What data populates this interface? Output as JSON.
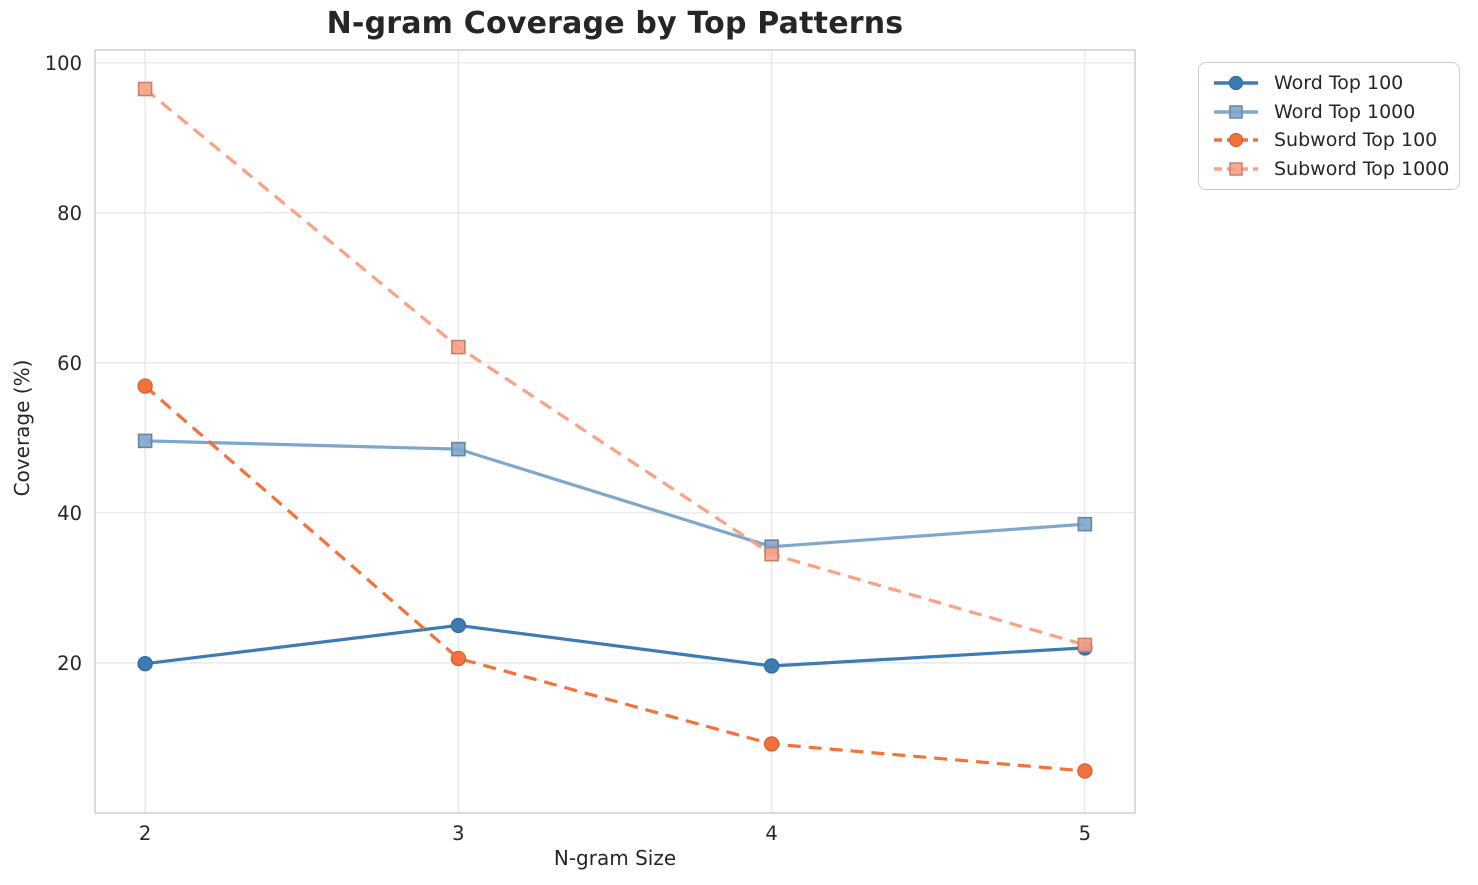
{
  "chart_data": {
    "type": "line",
    "title": "N-gram Coverage by Top Patterns",
    "xlabel": "N-gram Size",
    "ylabel": "Coverage (%)",
    "x": [
      2,
      3,
      4,
      5
    ],
    "xticks": [
      "2",
      "3",
      "4",
      "5"
    ],
    "yticks": [
      20,
      40,
      60,
      80,
      100
    ],
    "xlim": [
      1.84,
      5.16
    ],
    "ylim": [
      0,
      101.7
    ],
    "grid": true,
    "legend_position": "outside upper right",
    "series": [
      {
        "name": "Word Top 100",
        "values": [
          19.9,
          25.0,
          19.6,
          22.0
        ],
        "color": "#3d7bb4",
        "line_style": "solid",
        "marker": "circle"
      },
      {
        "name": "Word Top 1000",
        "values": [
          49.6,
          48.5,
          35.5,
          38.5
        ],
        "color": "#7fa7cc",
        "line_style": "solid",
        "marker": "square"
      },
      {
        "name": "Subword Top 100",
        "values": [
          56.9,
          20.6,
          9.2,
          5.6
        ],
        "color": "#f4713c",
        "line_style": "dashed",
        "marker": "circle"
      },
      {
        "name": "Subword Top 1000",
        "values": [
          96.5,
          62.1,
          34.5,
          22.4
        ],
        "color": "#f9a185",
        "line_style": "dashed",
        "marker": "square"
      }
    ],
    "style": {
      "grid_color": "#e7e7e7",
      "spine_color": "#cfcfcf",
      "text_color": "#262626",
      "background": "#ffffff"
    }
  }
}
